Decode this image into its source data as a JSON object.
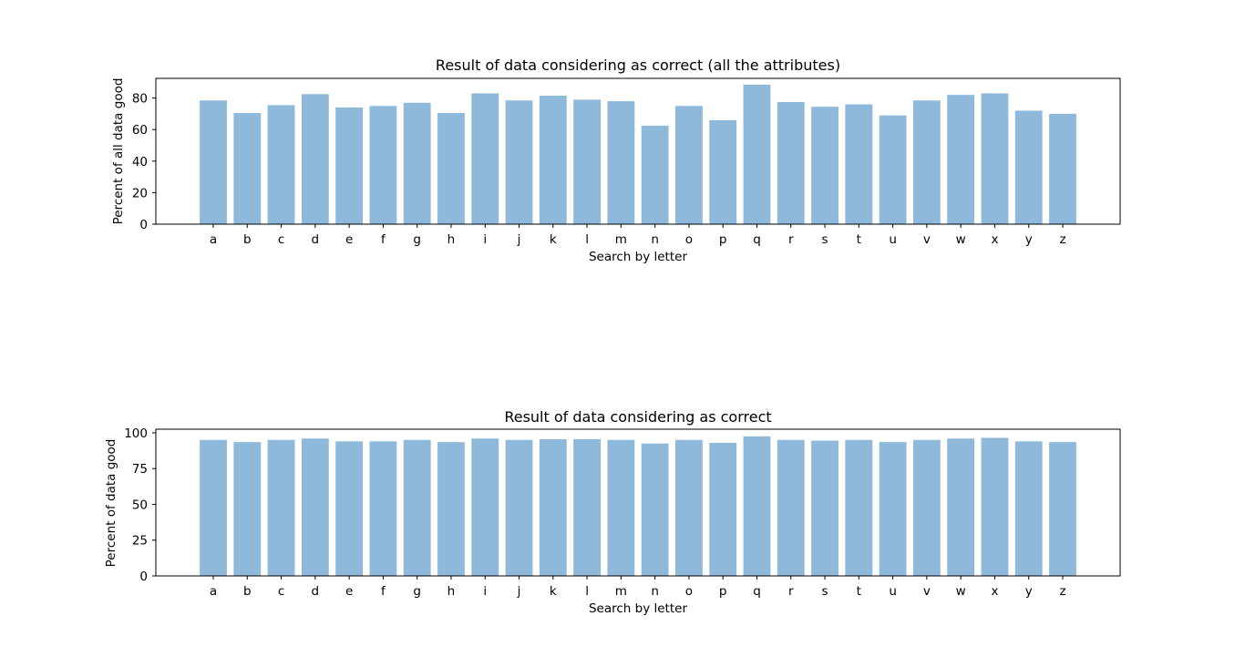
{
  "chart_data": [
    {
      "type": "bar",
      "title": "Result of data considering as correct (all the attributes)",
      "xlabel": "Search by letter",
      "ylabel": "Percent of all data good",
      "categories": [
        "a",
        "b",
        "c",
        "d",
        "e",
        "f",
        "g",
        "h",
        "i",
        "j",
        "k",
        "l",
        "m",
        "n",
        "o",
        "p",
        "q",
        "r",
        "s",
        "t",
        "u",
        "v",
        "w",
        "x",
        "y",
        "z"
      ],
      "values": [
        78.5,
        70.5,
        75.5,
        82.5,
        74,
        75,
        77,
        70.5,
        83,
        78.5,
        81.5,
        79,
        78,
        62.5,
        75,
        66,
        88.5,
        77.5,
        74.5,
        76,
        69,
        78.5,
        82,
        83,
        72,
        70
      ],
      "ylim": [
        0,
        92.5
      ],
      "yticks": [
        0,
        20,
        40,
        60,
        80
      ],
      "color": "#8fb9da",
      "grid": false
    },
    {
      "type": "bar",
      "title": "Result of data considering as correct",
      "xlabel": "Search by letter",
      "ylabel": "Percent of data good",
      "categories": [
        "a",
        "b",
        "c",
        "d",
        "e",
        "f",
        "g",
        "h",
        "i",
        "j",
        "k",
        "l",
        "m",
        "n",
        "o",
        "p",
        "q",
        "r",
        "s",
        "t",
        "u",
        "v",
        "w",
        "x",
        "y",
        "z"
      ],
      "values": [
        95,
        93.5,
        95,
        96,
        94,
        94,
        95,
        93.5,
        96,
        95,
        95.5,
        95.5,
        95,
        92.5,
        95,
        93,
        97.5,
        95,
        94.5,
        95,
        93.5,
        95,
        96,
        96.5,
        94,
        93.5
      ],
      "ylim": [
        0,
        102.5
      ],
      "yticks": [
        0,
        25,
        50,
        75,
        100
      ],
      "color": "#8fb9da",
      "grid": false
    }
  ]
}
